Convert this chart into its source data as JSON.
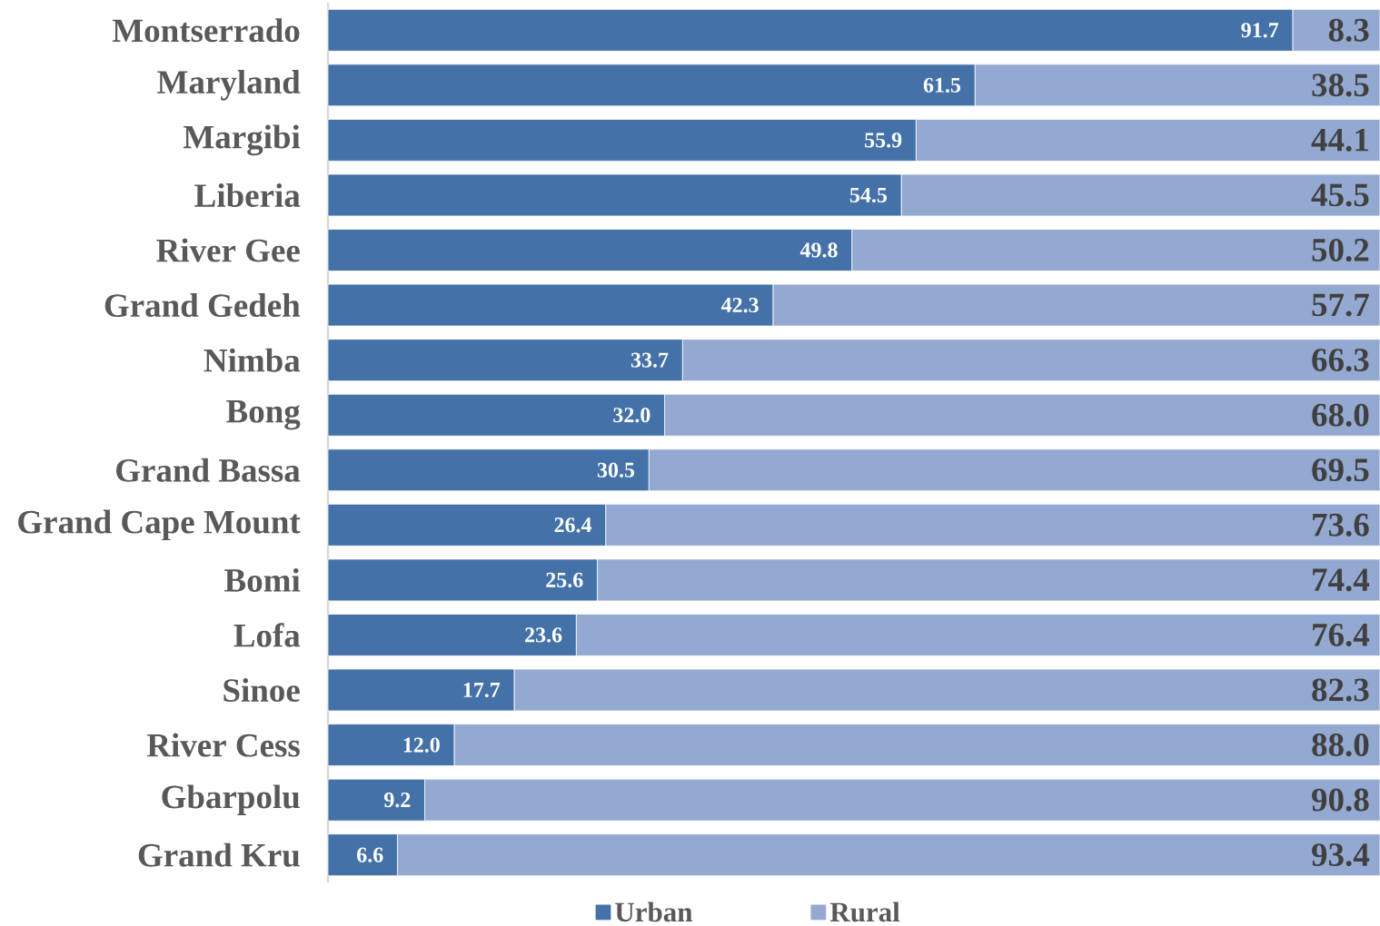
{
  "chart_data": {
    "type": "bar",
    "orientation": "horizontal",
    "stacked": true,
    "categories": [
      "Montserrado",
      "Maryland",
      "Margibi",
      "Liberia",
      "River Gee",
      "Grand Gedeh",
      "Nimba",
      "Bong",
      "Grand Bassa",
      "Grand Cape Mount",
      "Bomi",
      "Lofa",
      "Sinoe",
      "River Cess",
      "Gbarpolu",
      "Grand Kru"
    ],
    "xlim": [
      0,
      100
    ],
    "tick_labels": "y",
    "legend": "bottom",
    "series": [
      {
        "name": "Urban",
        "color": "#4472a8",
        "values": [
          91.7,
          61.5,
          55.9,
          54.5,
          49.8,
          42.3,
          33.7,
          32.0,
          30.5,
          26.4,
          25.6,
          23.6,
          17.7,
          12.0,
          9.2,
          6.6
        ],
        "value_labels": [
          "91.7",
          "61.5",
          "55.9",
          "54.5",
          "49.8",
          "42.3",
          "33.7",
          "32.0",
          "30.5",
          "26.4",
          "25.6",
          "23.6",
          "17.7",
          "12.0",
          "9.2",
          "6.6"
        ]
      },
      {
        "name": "Rural",
        "color": "#94a9d1",
        "values": [
          8.3,
          38.5,
          44.1,
          45.5,
          50.2,
          57.7,
          66.3,
          68.0,
          69.5,
          73.6,
          74.4,
          76.4,
          82.3,
          88.0,
          90.8,
          93.4
        ],
        "value_labels": [
          "8.3",
          "38.5",
          "44.1",
          "45.5",
          "50.2",
          "57.7",
          "66.3",
          "68.0",
          "69.5",
          "73.6",
          "74.4",
          "76.4",
          "82.3",
          "88.0",
          "90.8",
          "93.4"
        ]
      }
    ]
  }
}
